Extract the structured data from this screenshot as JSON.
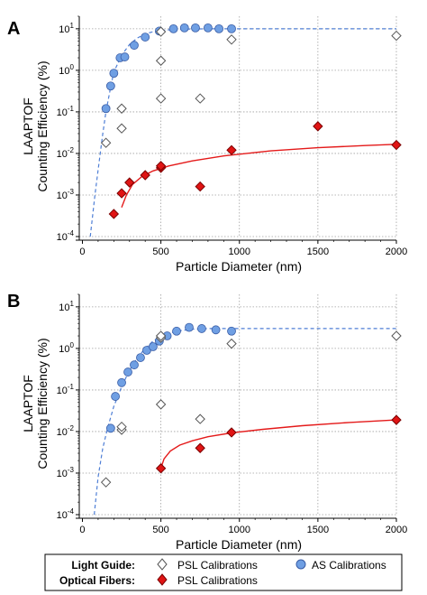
{
  "colors": {
    "as_fill": "#6f9fe3",
    "as_stroke": "#3a5da6",
    "psl_fiber_fill": "#e01414",
    "psl_fiber_stroke": "#7a0000",
    "psl_guide_fill": "#ffffff",
    "psl_guide_stroke": "#555555",
    "fit_blue": "#4f7fd6",
    "fit_red": "#e41a1a",
    "grid": "#a0a0a0"
  },
  "y_axis_label_line1": "LAAPTOF",
  "y_axis_label_line2": "Counting Efficiency (%)",
  "legend": {
    "light_guide_label": "Light Guide:",
    "optical_fibers_label": "Optical Fibers:",
    "psl_calibrations": "PSL Calibrations",
    "as_calibrations": "AS Calibrations"
  },
  "chart_data": [
    {
      "panel_label": "A",
      "type": "scatter",
      "xlabel": "Particle Diameter (nm)",
      "xlim": [
        -20,
        2000
      ],
      "ylim": [
        0.0001,
        20
      ],
      "y_scale": "log",
      "x_ticks": [
        0,
        500,
        1000,
        1500,
        2000
      ],
      "y_ticks": [
        "10^-4",
        "10^-3",
        "10^-2",
        "10^-1",
        "10^0",
        "10^1"
      ],
      "y_tick_values": [
        0.0001,
        0.001,
        0.01,
        0.1,
        1,
        10
      ],
      "grid": true,
      "series": [
        {
          "key": "guide_as",
          "marker": "circle",
          "x": [
            150,
            180,
            200,
            240,
            270,
            330,
            400,
            490,
            580,
            650,
            720,
            800,
            870,
            950
          ],
          "y": [
            0.12,
            0.42,
            0.85,
            2.0,
            2.1,
            4.0,
            6.3,
            8.8,
            10,
            10.5,
            10.5,
            10.5,
            10,
            10
          ]
        },
        {
          "key": "guide_psl",
          "marker": "diamond-open",
          "x": [
            150,
            250,
            250,
            500,
            500,
            500,
            750,
            950,
            2000
          ],
          "y": [
            0.018,
            0.04,
            0.12,
            0.21,
            1.7,
            8.5,
            0.21,
            5.5,
            6.8
          ]
        },
        {
          "key": "fiber_psl",
          "marker": "diamond-filled",
          "x": [
            200,
            250,
            300,
            400,
            500,
            500,
            750,
            950,
            1500,
            2000
          ],
          "y": [
            0.00035,
            0.0011,
            0.002,
            0.003,
            0.0045,
            0.005,
            0.0016,
            0.012,
            0.045,
            0.016
          ]
        }
      ],
      "fits": [
        {
          "key": "guide_fit",
          "style": "dashed",
          "x": [
            50,
            80,
            100,
            130,
            150,
            180,
            200,
            250,
            300,
            350,
            400,
            450,
            500,
            600,
            700,
            800,
            1000,
            1500,
            2000
          ],
          "y": [
            0.0001,
            0.001,
            0.004,
            0.03,
            0.1,
            0.4,
            0.9,
            2.3,
            4.2,
            6.0,
            7.5,
            8.5,
            9.1,
            9.7,
            9.9,
            10,
            10,
            10,
            10
          ]
        },
        {
          "key": "fiber_fit",
          "style": "solid",
          "x": [
            250,
            280,
            320,
            380,
            450,
            550,
            700,
            900,
            1200,
            1500,
            1800,
            2000
          ],
          "y": [
            0.0005,
            0.001,
            0.0018,
            0.0028,
            0.0038,
            0.005,
            0.0066,
            0.0087,
            0.0115,
            0.0137,
            0.0155,
            0.0166
          ]
        }
      ]
    },
    {
      "panel_label": "B",
      "type": "scatter",
      "xlabel": "Particle Diameter (nm)",
      "xlim": [
        -20,
        2000
      ],
      "ylim": [
        0.0001,
        20
      ],
      "y_scale": "log",
      "x_ticks": [
        0,
        500,
        1000,
        1500,
        2000
      ],
      "y_ticks": [
        "10^-4",
        "10^-3",
        "10^-2",
        "10^-1",
        "10^0",
        "10^1"
      ],
      "y_tick_values": [
        0.0001,
        0.001,
        0.01,
        0.1,
        1,
        10
      ],
      "grid": true,
      "series": [
        {
          "key": "guide_as",
          "marker": "circle",
          "x": [
            180,
            210,
            250,
            290,
            330,
            370,
            410,
            450,
            490,
            540,
            600,
            680,
            760,
            850,
            950
          ],
          "y": [
            0.012,
            0.07,
            0.15,
            0.27,
            0.4,
            0.6,
            0.9,
            1.1,
            1.5,
            2.0,
            2.6,
            3.2,
            3.0,
            2.8,
            2.6
          ]
        },
        {
          "key": "guide_psl",
          "marker": "diamond-open",
          "x": [
            150,
            250,
            250,
            500,
            500,
            500,
            750,
            950,
            2000
          ],
          "y": [
            0.0006,
            0.011,
            0.013,
            0.045,
            1.8,
            2.0,
            0.02,
            1.3,
            2.0
          ]
        },
        {
          "key": "fiber_psl",
          "marker": "diamond-filled",
          "x": [
            500,
            750,
            950,
            2000
          ],
          "y": [
            0.0013,
            0.004,
            0.0095,
            0.019
          ]
        }
      ],
      "fits": [
        {
          "key": "guide_fit",
          "style": "dashed",
          "x": [
            75,
            100,
            130,
            160,
            200,
            250,
            300,
            350,
            400,
            450,
            500,
            600,
            700,
            800,
            1000,
            1500,
            2000
          ],
          "y": [
            0.0001,
            0.0008,
            0.004,
            0.012,
            0.04,
            0.12,
            0.3,
            0.6,
            1.0,
            1.5,
            2.0,
            2.6,
            2.9,
            3.0,
            3.0,
            3.0,
            3.0
          ]
        },
        {
          "key": "fiber_fit",
          "style": "solid",
          "x": [
            500,
            520,
            560,
            620,
            700,
            800,
            950,
            1150,
            1400,
            1700,
            2000
          ],
          "y": [
            0.0013,
            0.0022,
            0.0034,
            0.0047,
            0.006,
            0.0075,
            0.0093,
            0.0113,
            0.0138,
            0.0165,
            0.019
          ]
        }
      ]
    }
  ]
}
